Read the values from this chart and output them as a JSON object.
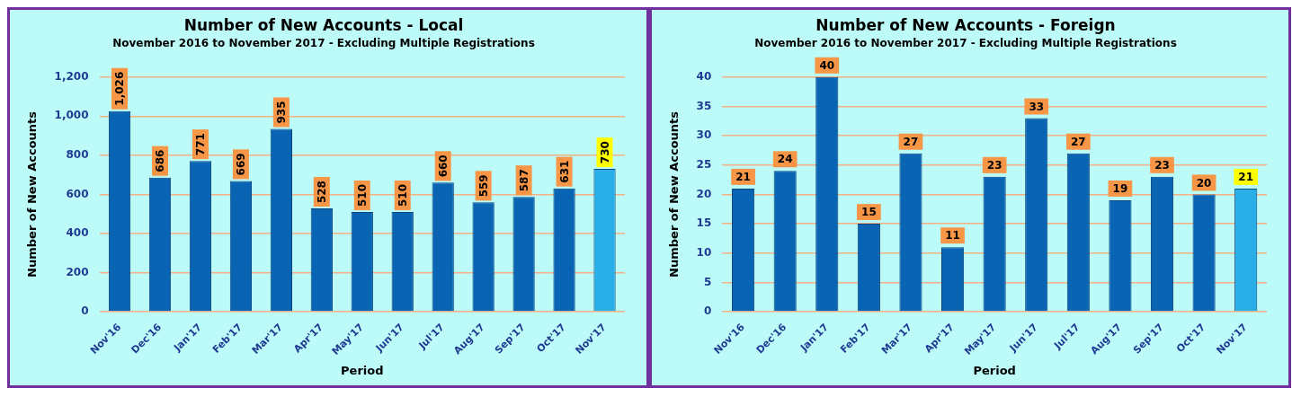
{
  "chart_data": [
    {
      "type": "bar",
      "title": "Number of New Accounts - Local",
      "subtitle": "November 2016 to November 2017 - Excluding Multiple Registrations",
      "xlabel": "Period",
      "ylabel": "Number of New Accounts",
      "categories": [
        "Nov'16",
        "Dec'16",
        "Jan'17",
        "Feb'17",
        "Mar'17",
        "Apr'17",
        "May'17",
        "Jun'17",
        "Jul'17",
        "Aug'17",
        "Sep'17",
        "Oct'17",
        "Nov'17"
      ],
      "values": [
        1026,
        686,
        771,
        669,
        935,
        528,
        510,
        510,
        660,
        559,
        587,
        631,
        730
      ],
      "value_labels": [
        "1,026",
        "686",
        "771",
        "669",
        "935",
        "528",
        "510",
        "510",
        "660",
        "559",
        "587",
        "631",
        "730"
      ],
      "colors": [
        "#0a64b4",
        "#0a64b4",
        "#0a64b4",
        "#0a64b4",
        "#0a64b4",
        "#0a64b4",
        "#0a64b4",
        "#0a64b4",
        "#0a64b4",
        "#0a64b4",
        "#0a64b4",
        "#0a64b4",
        "#29aee8"
      ],
      "data_labels": true,
      "ylim": [
        0,
        1200
      ],
      "yticks": [
        0,
        200,
        400,
        600,
        800,
        {
          "value": 1000,
          "label": "1,000"
        },
        {
          "value": 1200,
          "label": "1,200"
        }
      ],
      "grid": "y",
      "legend": false
    },
    {
      "type": "bar",
      "title": "Number of New Accounts - Foreign",
      "subtitle": "November 2016 to November 2017 - Excluding Multiple Registrations",
      "xlabel": "Period",
      "ylabel": "Number of New Accounts",
      "categories": [
        "Nov'16",
        "Dec'16",
        "Jan'17",
        "Feb'17",
        "Mar'17",
        "Apr'17",
        "May'17",
        "Jun'17",
        "Jul'17",
        "Aug'17",
        "Sep'17",
        "Oct'17",
        "Nov'17"
      ],
      "values": [
        21,
        24,
        40,
        15,
        27,
        11,
        23,
        33,
        27,
        19,
        23,
        20,
        21
      ],
      "colors": [
        "#0a64b4",
        "#0a64b4",
        "#0a64b4",
        "#0a64b4",
        "#0a64b4",
        "#0a64b4",
        "#0a64b4",
        "#0a64b4",
        "#0a64b4",
        "#0a64b4",
        "#0a64b4",
        "#0a64b4",
        "#29aee8"
      ],
      "data_labels": true,
      "ylim": [
        0,
        40
      ],
      "yticks": [
        0,
        5,
        10,
        15,
        20,
        25,
        30,
        35,
        40
      ],
      "grid": "y",
      "legend": false
    }
  ]
}
